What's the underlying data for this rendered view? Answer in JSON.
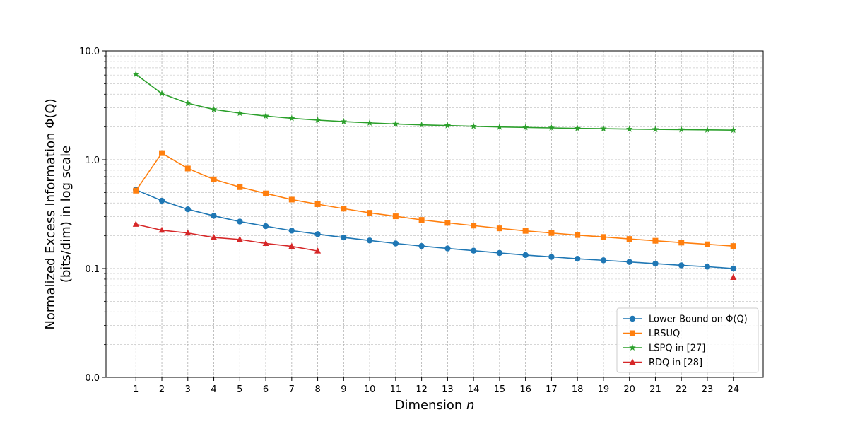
{
  "chart_data": {
    "type": "line",
    "xlabel": "Dimension n",
    "ylabel_line1": "Normalized Excess Information Φ(Q)",
    "ylabel_line2": "(bits/dim) in log scale",
    "x": [
      1,
      2,
      3,
      4,
      5,
      6,
      7,
      8,
      9,
      10,
      11,
      12,
      13,
      14,
      15,
      16,
      17,
      18,
      19,
      20,
      21,
      22,
      23,
      24
    ],
    "xlim": [
      -0.15,
      25.15
    ],
    "y_scale": "log",
    "ylim": [
      0.01,
      10
    ],
    "y_tick_values": [
      0.01,
      0.1,
      1,
      10
    ],
    "y_tick_labels": [
      "0.0",
      "0.1",
      "1.0",
      "10.0"
    ],
    "grid": true,
    "legend_position": "bottom-right",
    "series": [
      {
        "name": "Lower Bound on Φ(Q)",
        "color": "#1f77b4",
        "marker": "circle",
        "x": [
          1,
          2,
          3,
          4,
          5,
          6,
          7,
          8,
          9,
          10,
          11,
          12,
          13,
          14,
          15,
          16,
          17,
          18,
          19,
          20,
          21,
          22,
          23,
          24
        ],
        "values": [
          0.53,
          0.42,
          0.35,
          0.305,
          0.27,
          0.245,
          0.223,
          0.207,
          0.193,
          0.181,
          0.17,
          0.161,
          0.153,
          0.146,
          0.139,
          0.133,
          0.128,
          0.123,
          0.119,
          0.115,
          0.111,
          0.107,
          0.104,
          0.1
        ]
      },
      {
        "name": "LRSUQ",
        "color": "#ff7f0e",
        "marker": "square",
        "x": [
          1,
          2,
          3,
          4,
          5,
          6,
          7,
          8,
          9,
          10,
          11,
          12,
          13,
          14,
          15,
          16,
          17,
          18,
          19,
          20,
          21,
          22,
          23,
          24
        ],
        "values": [
          0.52,
          1.15,
          0.83,
          0.66,
          0.56,
          0.49,
          0.43,
          0.39,
          0.355,
          0.325,
          0.302,
          0.28,
          0.263,
          0.248,
          0.234,
          0.222,
          0.212,
          0.203,
          0.195,
          0.187,
          0.18,
          0.173,
          0.167,
          0.161
        ]
      },
      {
        "name": "LSPQ in [27]",
        "color": "#2ca02c",
        "marker": "star",
        "x": [
          1,
          2,
          3,
          4,
          5,
          6,
          7,
          8,
          9,
          10,
          11,
          12,
          13,
          14,
          15,
          16,
          17,
          18,
          19,
          20,
          21,
          22,
          23,
          24
        ],
        "values": [
          6.1,
          4.05,
          3.3,
          2.9,
          2.68,
          2.52,
          2.4,
          2.31,
          2.24,
          2.18,
          2.13,
          2.09,
          2.06,
          2.03,
          2.0,
          1.98,
          1.96,
          1.94,
          1.93,
          1.91,
          1.9,
          1.89,
          1.88,
          1.87
        ]
      },
      {
        "name": "RDQ in [28]",
        "color": "#d62728",
        "marker": "triangle",
        "x": [
          1,
          2,
          3,
          4,
          5,
          6,
          7,
          8
        ],
        "values": [
          0.255,
          0.225,
          0.212,
          0.193,
          0.185,
          0.17,
          0.16,
          0.145
        ],
        "extra_points": [
          {
            "x": 24,
            "y": 0.083
          }
        ]
      }
    ]
  }
}
